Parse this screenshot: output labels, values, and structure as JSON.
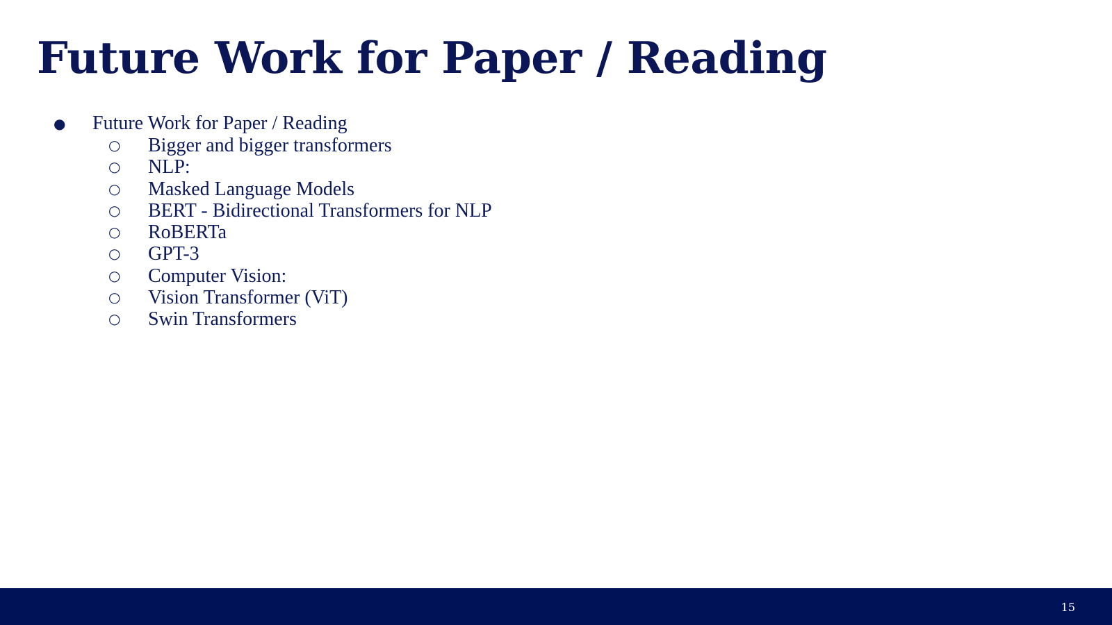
{
  "slide": {
    "title": "Future Work for Paper / Reading",
    "page_number": "15",
    "bullet_marker": "●",
    "sub_bullet_marker": "○",
    "colors": {
      "text": "#0c1a5b",
      "footer": "#001257",
      "background": "#ffffff"
    },
    "bullets": [
      {
        "text": "Future Work for Paper / Reading",
        "children": [
          "Bigger and bigger transformers",
          "NLP:",
          "Masked Language Models",
          "BERT - Bidirectional Transformers for NLP",
          "RoBERTa",
          "GPT-3",
          "Computer Vision:",
          "Vision Transformer (ViT)",
          "Swin Transformers"
        ]
      }
    ]
  }
}
